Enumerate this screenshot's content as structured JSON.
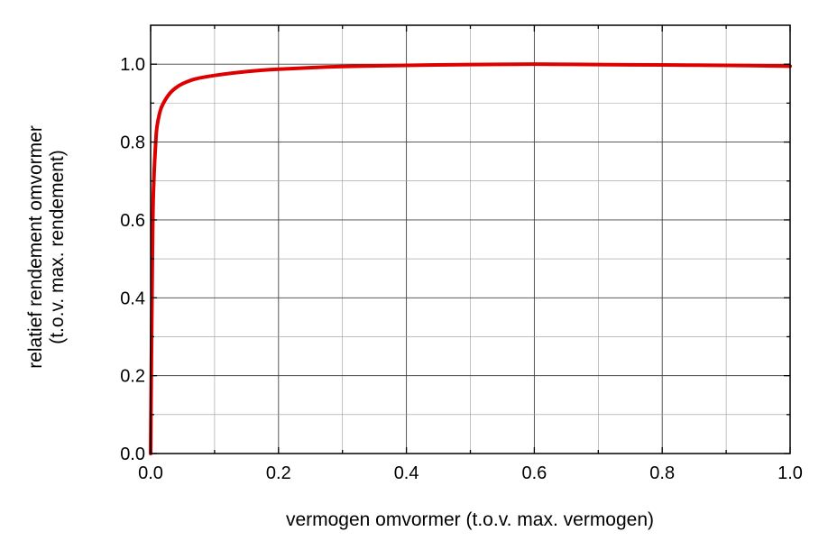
{
  "chart_data": {
    "type": "line",
    "title": "",
    "xlabel": "vermogen omvormer (t.o.v. max. vermogen)",
    "ylabel_line1": "relatief rendement omvormer",
    "ylabel_line2": "(t.o.v. max. rendement)",
    "xlim": [
      0.0,
      1.0
    ],
    "ylim": [
      0.0,
      1.1
    ],
    "x_ticks": [
      "0.0",
      "0.2",
      "0.4",
      "0.6",
      "0.8",
      "1.0"
    ],
    "y_ticks": [
      "0.0",
      "0.2",
      "0.4",
      "0.6",
      "0.8",
      "1.0"
    ],
    "grid": true,
    "series": [
      {
        "color": "#dd0000",
        "x": [
          0.0,
          0.003,
          0.005,
          0.008,
          0.01,
          0.015,
          0.02,
          0.03,
          0.04,
          0.05,
          0.07,
          0.1,
          0.15,
          0.2,
          0.3,
          0.4,
          0.5,
          0.6,
          0.7,
          0.8,
          0.9,
          1.0
        ],
        "y": [
          0.0,
          0.55,
          0.7,
          0.8,
          0.84,
          0.88,
          0.9,
          0.925,
          0.94,
          0.95,
          0.962,
          0.971,
          0.981,
          0.987,
          0.994,
          0.997,
          0.999,
          1.0,
          0.999,
          0.998,
          0.997,
          0.995
        ]
      }
    ]
  }
}
